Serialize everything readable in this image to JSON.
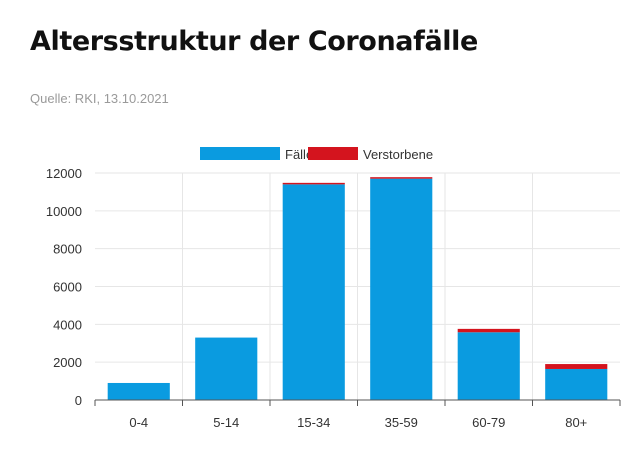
{
  "title": "Altersstruktur der Coronafälle",
  "subtitle": "Quelle: RKI, 13.10.2021",
  "colors": {
    "faelle": "#0a9be0",
    "verstorbene": "#d4141e",
    "grid": "#e6e6e6",
    "axis": "#555555"
  },
  "chart_data": {
    "type": "bar",
    "stacked": true,
    "categories": [
      "0-4",
      "5-14",
      "15-34",
      "35-59",
      "60-79",
      "80+"
    ],
    "series": [
      {
        "name": "Fälle",
        "values": [
          900,
          3300,
          11400,
          11700,
          3580,
          1640
        ]
      },
      {
        "name": "Verstorbene",
        "values": [
          0,
          0,
          5,
          40,
          180,
          260
        ]
      }
    ],
    "ylim": [
      0,
      12000
    ],
    "yticks": [
      0,
      2000,
      4000,
      6000,
      8000,
      10000,
      12000
    ],
    "ytick_labels": [
      "0",
      "2000",
      "4000",
      "6000",
      "8000",
      "10000",
      "12000"
    ],
    "grid": true,
    "legend_position": "top-center",
    "xlabel": "",
    "ylabel": ""
  }
}
